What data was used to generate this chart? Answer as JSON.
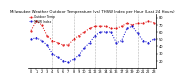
{
  "title": "Milwaukee Weather Outdoor Temperature (vs) THSW Index per Hour (Last 24 Hours)",
  "temp_color": "#dd0000",
  "thsw_color": "#0000cc",
  "background": "#ffffff",
  "hours": [
    0,
    1,
    2,
    3,
    4,
    5,
    6,
    7,
    8,
    9,
    10,
    11,
    12,
    13,
    14,
    15,
    16,
    17,
    18,
    19,
    20,
    21,
    22,
    23
  ],
  "temp": [
    62,
    75,
    70,
    55,
    48,
    45,
    42,
    42,
    50,
    55,
    60,
    65,
    68,
    68,
    68,
    65,
    65,
    68,
    72,
    70,
    72,
    72,
    75,
    73
  ],
  "thsw": [
    50,
    52,
    48,
    42,
    30,
    25,
    20,
    18,
    22,
    28,
    38,
    45,
    55,
    60,
    60,
    60,
    45,
    48,
    65,
    68,
    58,
    48,
    45,
    50
  ],
  "ylim_min": 10,
  "ylim_max": 85,
  "ytick_positions": [
    20,
    30,
    40,
    50,
    60,
    70,
    80
  ],
  "ytick_labels": [
    "20",
    "30",
    "40",
    "50",
    "60",
    "70",
    "80"
  ],
  "xtick_positions": [
    0,
    1,
    2,
    3,
    4,
    5,
    6,
    7,
    8,
    9,
    10,
    11,
    12,
    13,
    14,
    15,
    16,
    17,
    18,
    19,
    20,
    21,
    22,
    23
  ],
  "xtick_labels": [
    "0",
    "1",
    "2",
    "3",
    "4",
    "5",
    "6",
    "7",
    "8",
    "9",
    "10",
    "11",
    "12",
    "13",
    "14",
    "15",
    "16",
    "17",
    "18",
    "19",
    "20",
    "21",
    "22",
    "23"
  ],
  "vgrid_positions": [
    4,
    8,
    12,
    16,
    20
  ],
  "grid_color": "#aaaaaa",
  "legend_temp": "Outdoor Temp",
  "legend_thsw": "THSW Index",
  "title_fontsize": 2.8,
  "tick_fontsize": 2.5,
  "legend_fontsize": 2.2,
  "line_width": 0.7,
  "marker_size": 1.0
}
